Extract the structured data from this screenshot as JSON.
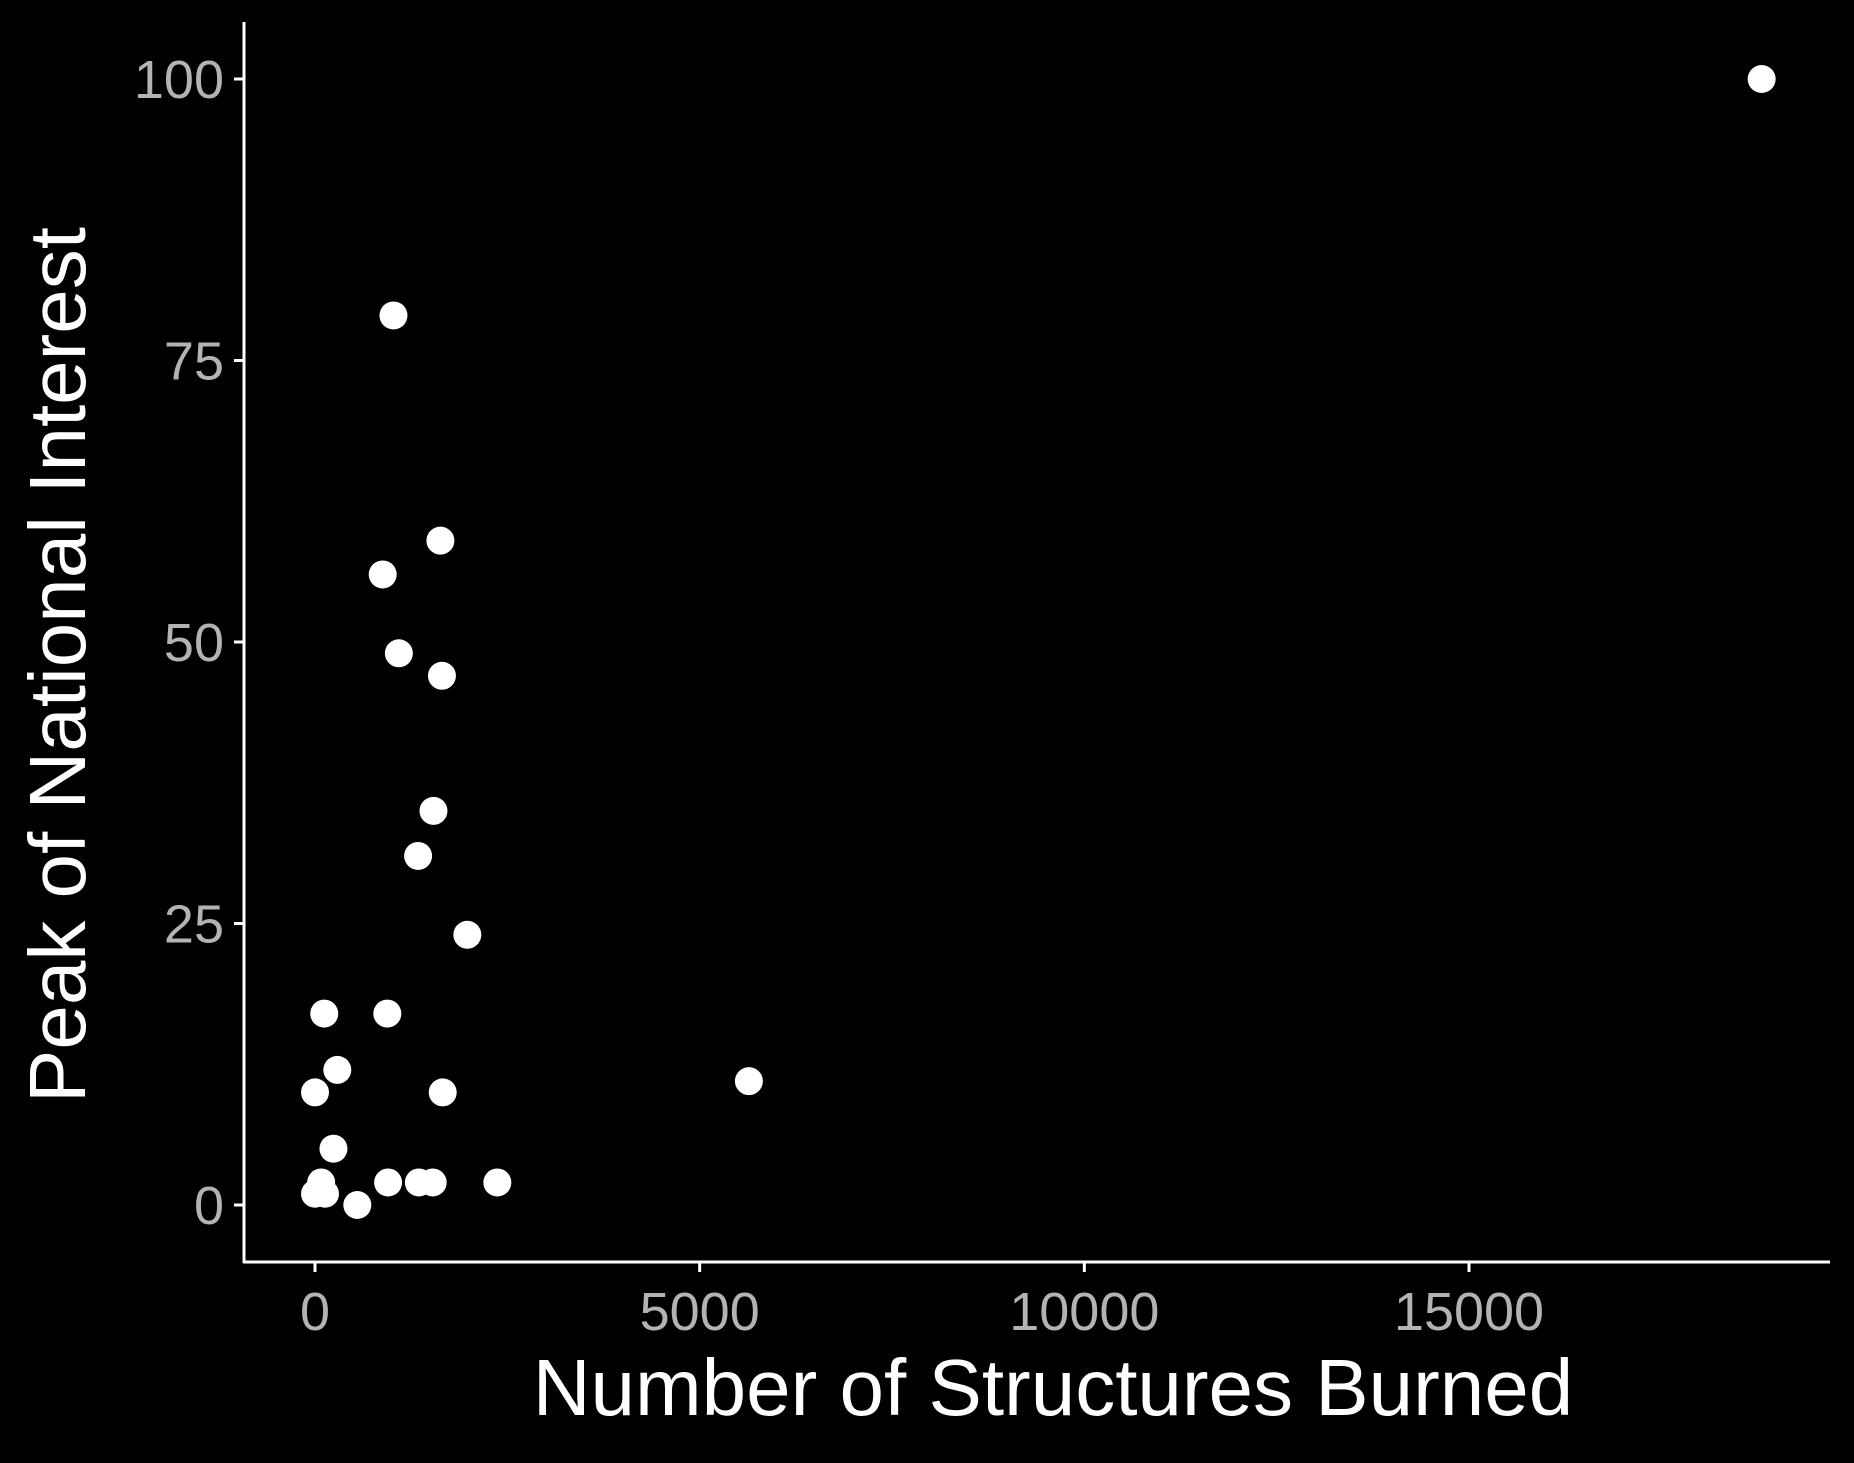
{
  "chart_data": {
    "type": "scatter",
    "title": "",
    "xlabel": "Number of Structures Burned",
    "ylabel": "Peak of National Interest",
    "xlim": [
      -900,
      19700
    ],
    "ylim": [
      -5,
      105
    ],
    "xticks": [
      0,
      5000,
      10000,
      15000
    ],
    "yticks": [
      0,
      25,
      50,
      75,
      100
    ],
    "xtick_labels": [
      "0",
      "5000",
      "10000",
      "15000"
    ],
    "ytick_labels": [
      "0",
      "25",
      "50",
      "75",
      "100"
    ],
    "grid": false,
    "legend": "none",
    "colors": {
      "background": "#000000",
      "axis": "#ffffff",
      "point": "#ffffff",
      "tick_label": "#b3b3b3",
      "axis_title": "#ffffff"
    },
    "points": [
      {
        "x": 18804,
        "y": 100
      },
      {
        "x": 1020,
        "y": 79
      },
      {
        "x": 1630,
        "y": 59
      },
      {
        "x": 880,
        "y": 56
      },
      {
        "x": 1090,
        "y": 49
      },
      {
        "x": 1650,
        "y": 47
      },
      {
        "x": 1540,
        "y": 35
      },
      {
        "x": 1340,
        "y": 31
      },
      {
        "x": 1980,
        "y": 24
      },
      {
        "x": 120,
        "y": 17
      },
      {
        "x": 940,
        "y": 17
      },
      {
        "x": 5640,
        "y": 11
      },
      {
        "x": 290,
        "y": 12
      },
      {
        "x": 0,
        "y": 10
      },
      {
        "x": 1660,
        "y": 10
      },
      {
        "x": 240,
        "y": 5
      },
      {
        "x": 80,
        "y": 2
      },
      {
        "x": 950,
        "y": 2
      },
      {
        "x": 1350,
        "y": 2
      },
      {
        "x": 1530,
        "y": 2
      },
      {
        "x": 2370,
        "y": 2
      },
      {
        "x": 0,
        "y": 1
      },
      {
        "x": 130,
        "y": 1
      },
      {
        "x": 550,
        "y": 0
      }
    ]
  }
}
